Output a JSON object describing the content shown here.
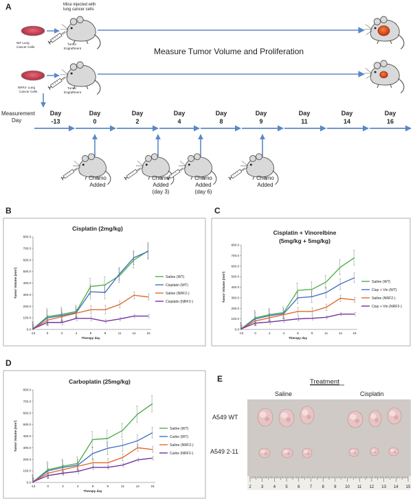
{
  "panels": {
    "A": "A",
    "B": "B",
    "C": "C",
    "D": "D",
    "E": "E"
  },
  "schematic": {
    "mice_label": "Mice injected with lung cancer cells",
    "wt_cells": [
      "WT Lung",
      "Cancer Cells"
    ],
    "nrf2_cells": [
      "NRF2- Lung",
      "Cancer Cells"
    ],
    "tumor_engraftment": [
      "Tumor",
      "Engraftment"
    ],
    "measure_label": "Measure Tumor Volume and Proliferation",
    "measurement_day": [
      "Measurement",
      "Day"
    ],
    "days": [
      {
        "top": "Day",
        "bottom": "-13"
      },
      {
        "top": "Day",
        "bottom": "0"
      },
      {
        "top": "Day",
        "bottom": "2"
      },
      {
        "top": "Day",
        "bottom": "4"
      },
      {
        "top": "Day",
        "bottom": "8"
      },
      {
        "top": "Day",
        "bottom": "9"
      },
      {
        "top": "Day",
        "bottom": "11"
      },
      {
        "top": "Day",
        "bottom": "14"
      },
      {
        "top": "Day",
        "bottom": "16"
      }
    ],
    "chemo_events": [
      {
        "day_index": 1,
        "lines": [
          "Chemo",
          "Added"
        ]
      },
      {
        "day_index": 2,
        "lines": [
          "Chemo",
          "Added",
          "(day 3)"
        ]
      },
      {
        "day_index": 3,
        "lines": [
          "Chemo",
          "Added",
          "(day 6)"
        ]
      },
      {
        "day_index": 5,
        "lines": [
          "Chemo",
          "Added"
        ]
      }
    ]
  },
  "colors": {
    "green": "#4daf4a",
    "blue": "#4472c4",
    "orange": "#e06a2a",
    "purple": "#7030a0",
    "arrow": "#5b87c7",
    "petri": "#c0394b",
    "tumor": "#e0461a"
  },
  "chart_data": [
    {
      "type": "line",
      "title": "Cisplatin (2mg/kg)",
      "xlabel": "Therapy day",
      "ylabel": "Tumor Volume (mm³)",
      "categories": [
        "-13",
        "0",
        "2",
        "4",
        "8",
        "9",
        "11",
        "14",
        "16"
      ],
      "ylim": [
        0,
        800
      ],
      "yticks": [
        "0.0",
        "100.0",
        "200.0",
        "300.0",
        "400.0",
        "500.0",
        "600.0",
        "700.0",
        "800.0"
      ],
      "legend": "right",
      "series": [
        {
          "name": "Saline (WT)",
          "color": "green",
          "values": [
            5,
            110,
            130,
            155,
            370,
            385,
            465,
            600,
            680
          ],
          "err": [
            60,
            70,
            60,
            55,
            70,
            70,
            60,
            70,
            70
          ]
        },
        {
          "name": "Cisplatin (WT)",
          "color": "blue",
          "values": [
            5,
            100,
            120,
            145,
            325,
            320,
            480,
            620,
            675
          ],
          "err": [
            60,
            65,
            55,
            50,
            60,
            55,
            55,
            60,
            65
          ]
        },
        {
          "name": "Saline (NRF2-)",
          "color": "orange",
          "values": [
            5,
            80,
            110,
            140,
            170,
            170,
            215,
            295,
            280
          ],
          "err": [
            40,
            40,
            40,
            35,
            35,
            35,
            30,
            30,
            25
          ]
        },
        {
          "name": "Cisplatin (NRF2-)",
          "color": "purple",
          "values": [
            5,
            60,
            60,
            95,
            95,
            70,
            90,
            115,
            115
          ],
          "err": [
            30,
            25,
            20,
            20,
            20,
            15,
            15,
            15,
            15
          ]
        }
      ]
    },
    {
      "type": "line",
      "title": "Cisplatin + Vinorelbine",
      "subtitle": "(5mg/kg + 5mg/kg)",
      "xlabel": "Therapy day",
      "ylabel": "Tumor Volume (mm³)",
      "categories": [
        "-13",
        "0",
        "2",
        "4",
        "8",
        "9",
        "11",
        "14",
        "16"
      ],
      "ylim": [
        0,
        800
      ],
      "yticks": [
        "0.0",
        "100.0",
        "200.0",
        "300.0",
        "400.0",
        "500.0",
        "600.0",
        "700.0",
        "800.0"
      ],
      "legend": "right",
      "series": [
        {
          "name": "Saline (WT)",
          "color": "green",
          "values": [
            5,
            110,
            140,
            160,
            370,
            380,
            450,
            590,
            680
          ],
          "err": [
            60,
            70,
            60,
            55,
            70,
            70,
            60,
            70,
            70
          ]
        },
        {
          "name": "Cisp + Vin (WT)",
          "color": "blue",
          "values": [
            5,
            100,
            130,
            150,
            300,
            310,
            350,
            430,
            490
          ],
          "err": [
            60,
            65,
            55,
            50,
            55,
            55,
            50,
            50,
            45
          ]
        },
        {
          "name": "Saline (NRF2-)",
          "color": "orange",
          "values": [
            5,
            80,
            110,
            140,
            170,
            170,
            210,
            295,
            280
          ],
          "err": [
            40,
            40,
            40,
            35,
            35,
            35,
            30,
            30,
            25
          ]
        },
        {
          "name": "Cisp + Vin (NRF2-)",
          "color": "purple",
          "values": [
            5,
            60,
            70,
            85,
            100,
            105,
            115,
            145,
            145
          ],
          "err": [
            30,
            25,
            20,
            20,
            20,
            15,
            15,
            15,
            15
          ]
        }
      ]
    },
    {
      "type": "line",
      "title": "Carboplatin (25mg/kg)",
      "xlabel": "Therapy day",
      "ylabel": "Tumor Volume (mm³)",
      "categories": [
        "-13",
        "0",
        "2",
        "4",
        "8",
        "9",
        "11",
        "14",
        "16"
      ],
      "ylim": [
        0,
        800
      ],
      "yticks": [
        "0.0",
        "100.0",
        "200.0",
        "300.0",
        "400.0",
        "500.0",
        "600.0",
        "700.0",
        "800.0"
      ],
      "legend": "right",
      "series": [
        {
          "name": "Saline (WT)",
          "color": "green",
          "values": [
            5,
            110,
            140,
            165,
            370,
            380,
            450,
            590,
            680
          ],
          "err": [
            60,
            70,
            60,
            55,
            70,
            70,
            60,
            70,
            70
          ]
        },
        {
          "name": "Carbo (WT)",
          "color": "blue",
          "values": [
            5,
            100,
            130,
            150,
            250,
            295,
            320,
            360,
            430
          ],
          "err": [
            60,
            65,
            55,
            50,
            55,
            55,
            50,
            50,
            45
          ]
        },
        {
          "name": "Saline (NRF2-)",
          "color": "orange",
          "values": [
            5,
            80,
            110,
            140,
            170,
            170,
            215,
            300,
            285
          ],
          "err": [
            40,
            40,
            40,
            35,
            35,
            35,
            30,
            30,
            25
          ]
        },
        {
          "name": "Carbo (NRF2-)",
          "color": "purple",
          "values": [
            5,
            60,
            80,
            95,
            130,
            130,
            150,
            195,
            210
          ],
          "err": [
            30,
            25,
            20,
            20,
            20,
            15,
            15,
            15,
            15
          ]
        }
      ]
    }
  ],
  "photo": {
    "treatment_label": "Treatment",
    "saline_label": "Saline",
    "cisplatin_label": "Cisplatin",
    "row1_label": "A549 WT",
    "row2_label": "A549 2-11",
    "ruler_numbers": [
      "2",
      "3",
      "4",
      "5",
      "6",
      "7",
      "8",
      "9",
      "10",
      "11",
      "12",
      "13",
      "14",
      "15"
    ]
  }
}
